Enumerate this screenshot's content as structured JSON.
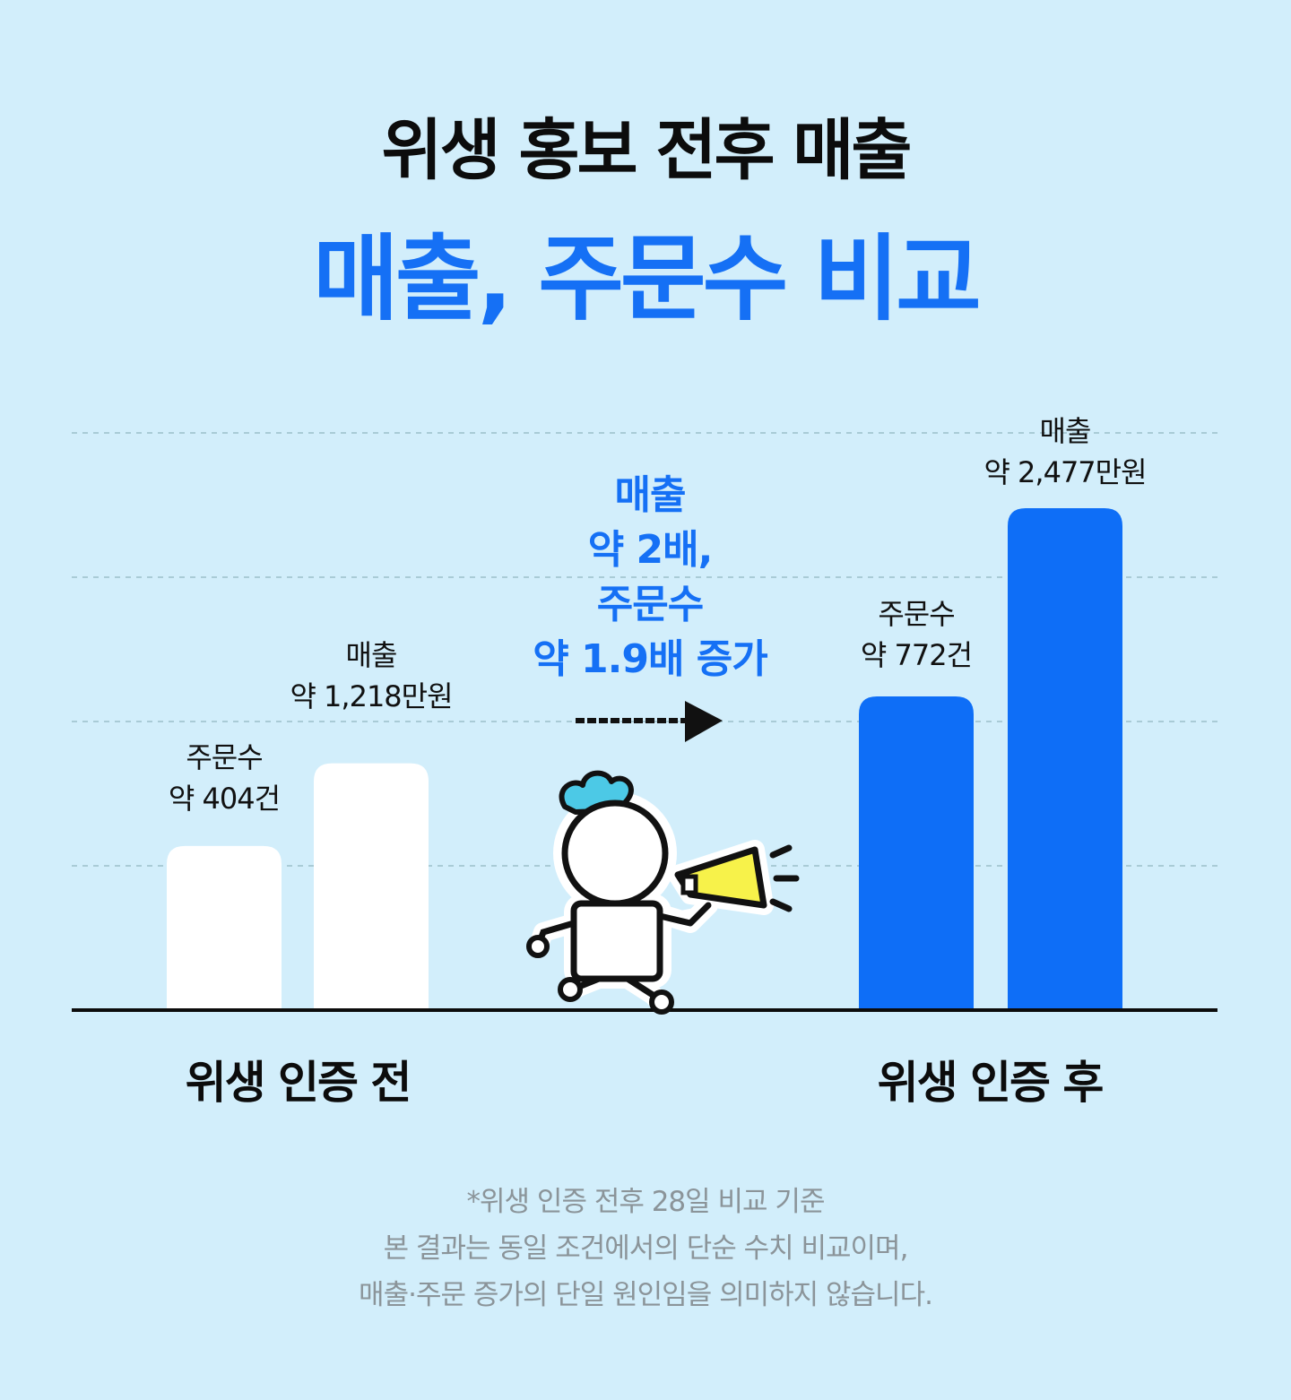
{
  "header": {
    "title": "위생 홍보 전후 매출",
    "subtitle": "매출, 주문수 비교"
  },
  "callout": {
    "line1": "매출",
    "line2": "약 2배,",
    "line3": "주문수",
    "line4": "약 1.9배 증가"
  },
  "groups": {
    "before": "위생 인증 전",
    "after": "위생 인증 후"
  },
  "labels": {
    "before_orders": [
      "주문수",
      "약 404건"
    ],
    "before_sales": [
      "매출",
      "약 1,218만원"
    ],
    "after_orders": [
      "주문수",
      "약 772건"
    ],
    "after_sales": [
      "매출",
      "약 2,477만원"
    ]
  },
  "footnote": {
    "line1": "*위생 인증 전후 28일 비교 기준",
    "line2": "본 결과는 동일 조건에서의 단순 수치 비교이며,",
    "line3": "매출·주문 증가의 단일 원인임을 의미하지 않습니다."
  },
  "colors": {
    "background": "#d2eefb",
    "accent": "#1570f5",
    "before_bar": "#ffffff",
    "after_bar": "#0e6ef7",
    "megaphone": "#f7f24a",
    "chef_hat": "#4cc9e6"
  },
  "icons": [
    "arrow-right-icon",
    "chef-mascot-icon",
    "megaphone-icon"
  ],
  "chart_data": {
    "type": "bar",
    "categories": [
      "위생 인증 전",
      "위생 인증 후"
    ],
    "series": [
      {
        "name": "주문수",
        "unit": "건",
        "values": [
          404,
          772
        ]
      },
      {
        "name": "매출",
        "unit": "만원",
        "values": [
          1218,
          2477
        ]
      }
    ],
    "grid": true,
    "legend": "none"
  }
}
